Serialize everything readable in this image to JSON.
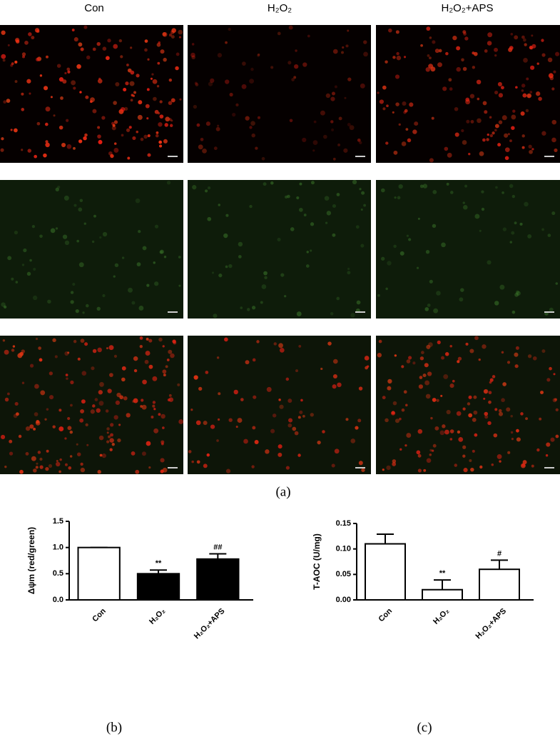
{
  "column_headers": [
    "Con",
    "H₂O₂",
    "H₂O₂+APS"
  ],
  "panel_labels": [
    "(a)",
    "(b)",
    "(c)"
  ],
  "chart_data": [
    {
      "type": "bar",
      "y_label": "Δψm (red/green)",
      "categories": [
        "Con",
        "H₂O₂",
        "H₂O₂+APS"
      ],
      "values": [
        1.0,
        0.5,
        0.78
      ],
      "errors": [
        0,
        0.07,
        0.1
      ],
      "bar_colors": [
        "#ffffff",
        "#000000",
        "#000000"
      ],
      "annotations": [
        null,
        "**",
        "##"
      ],
      "ylim": [
        0,
        1.5
      ],
      "yticks": [
        {
          "value": 0,
          "label": "0.0"
        },
        {
          "value": 0.5,
          "label": "0.5"
        },
        {
          "value": 1,
          "label": "1.0"
        },
        {
          "value": 1.5,
          "label": "1.5"
        }
      ]
    },
    {
      "type": "bar",
      "y_label": "T-AOC (U/mg)",
      "categories": [
        "Con",
        "H₂O₂",
        "H₂O₂+APS"
      ],
      "values": [
        0.11,
        0.02,
        0.06
      ],
      "errors": [
        0.019,
        0.019,
        0.018
      ],
      "bar_colors": [
        "#ffffff",
        "#ffffff",
        "#ffffff"
      ],
      "annotations": [
        null,
        "**",
        "#"
      ],
      "ylim": [
        0,
        0.15
      ],
      "yticks": [
        {
          "value": 0,
          "label": "0.00"
        },
        {
          "value": 0.05,
          "label": "0.05"
        },
        {
          "value": 0.1,
          "label": "0.10"
        },
        {
          "value": 0.15,
          "label": "0.15"
        }
      ]
    }
  ]
}
